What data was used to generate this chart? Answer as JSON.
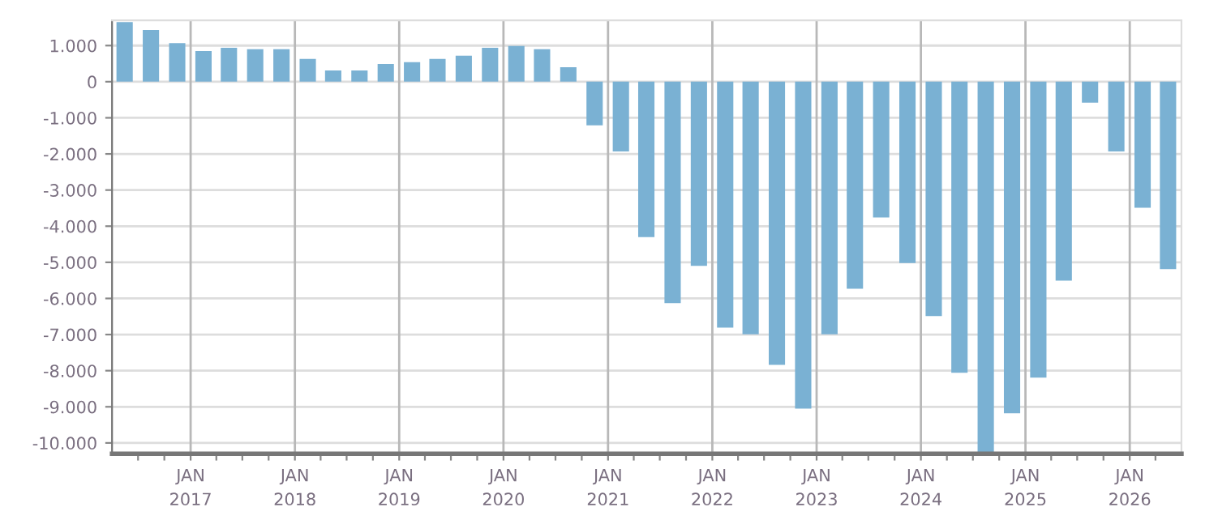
{
  "chart_data": {
    "type": "bar",
    "color": "#7ab1d3",
    "x": [
      "2016-05-15",
      "2016-08-15",
      "2016-11-15",
      "2017-02-15",
      "2017-05-15",
      "2017-08-15",
      "2017-11-15",
      "2018-02-15",
      "2018-05-15",
      "2018-08-15",
      "2018-11-15",
      "2019-02-15",
      "2019-05-15",
      "2019-08-15",
      "2019-11-15",
      "2020-02-15",
      "2020-05-15",
      "2020-08-15",
      "2020-11-15",
      "2021-02-15",
      "2021-05-15",
      "2021-08-15",
      "2021-11-15",
      "2022-02-15",
      "2022-05-15",
      "2022-08-15",
      "2022-11-15",
      "2023-02-15",
      "2023-05-15",
      "2023-08-15",
      "2023-11-15",
      "2024-02-15",
      "2024-05-15",
      "2024-08-15",
      "2024-11-15",
      "2025-02-15",
      "2025-05-15",
      "2025-08-15",
      "2025-11-15",
      "2026-02-15",
      "2026-05-15"
    ],
    "values": [
      1650,
      1430,
      1070,
      850,
      940,
      900,
      900,
      630,
      310,
      310,
      490,
      540,
      630,
      720,
      940,
      990,
      900,
      400,
      -1210,
      -1930,
      -4300,
      -6130,
      -5100,
      -6810,
      -6990,
      -7840,
      -9050,
      -6990,
      -5730,
      -3760,
      -5020,
      -6490,
      -8060,
      -10260,
      -9180,
      -8190,
      -5510,
      -580,
      -1930,
      -3490,
      -5190
    ],
    "xlim": [
      "2016-04-01",
      "2026-07-01"
    ],
    "xticks": [
      {
        "value": "2016-07-01",
        "label": null
      },
      {
        "value": "2016-10-01",
        "label": null
      },
      {
        "value": "2017-01-01",
        "label": "JAN\n2017"
      },
      {
        "value": "2017-04-01",
        "label": null
      },
      {
        "value": "2017-07-01",
        "label": null
      },
      {
        "value": "2017-10-01",
        "label": null
      },
      {
        "value": "2018-01-01",
        "label": "JAN\n2018"
      },
      {
        "value": "2018-04-01",
        "label": null
      },
      {
        "value": "2018-07-01",
        "label": null
      },
      {
        "value": "2018-10-01",
        "label": null
      },
      {
        "value": "2019-01-01",
        "label": "JAN\n2019"
      },
      {
        "value": "2019-04-01",
        "label": null
      },
      {
        "value": "2019-07-01",
        "label": null
      },
      {
        "value": "2019-10-01",
        "label": null
      },
      {
        "value": "2020-01-01",
        "label": "JAN\n2020"
      },
      {
        "value": "2020-04-01",
        "label": null
      },
      {
        "value": "2020-07-01",
        "label": null
      },
      {
        "value": "2020-10-01",
        "label": null
      },
      {
        "value": "2021-01-01",
        "label": "JAN\n2021"
      },
      {
        "value": "2021-04-01",
        "label": null
      },
      {
        "value": "2021-07-01",
        "label": null
      },
      {
        "value": "2021-10-01",
        "label": null
      },
      {
        "value": "2022-01-01",
        "label": "JAN\n2022"
      },
      {
        "value": "2022-04-01",
        "label": null
      },
      {
        "value": "2022-07-01",
        "label": null
      },
      {
        "value": "2022-10-01",
        "label": null
      },
      {
        "value": "2023-01-01",
        "label": "JAN\n2023"
      },
      {
        "value": "2023-04-01",
        "label": null
      },
      {
        "value": "2023-07-01",
        "label": null
      },
      {
        "value": "2023-10-01",
        "label": null
      },
      {
        "value": "2024-01-01",
        "label": "JAN\n2024"
      },
      {
        "value": "2024-04-01",
        "label": null
      },
      {
        "value": "2024-07-01",
        "label": null
      },
      {
        "value": "2024-10-01",
        "label": null
      },
      {
        "value": "2025-01-01",
        "label": "JAN\n2025"
      },
      {
        "value": "2025-04-01",
        "label": null
      },
      {
        "value": "2025-07-01",
        "label": null
      },
      {
        "value": "2025-10-01",
        "label": null
      },
      {
        "value": "2026-01-01",
        "label": "JAN\n2026"
      },
      {
        "value": "2026-04-01",
        "label": null
      }
    ],
    "ylim": [
      -10300,
      1700
    ],
    "yticks": [
      {
        "value": 1000,
        "label": "1.000"
      },
      0,
      {
        "value": -1000,
        "label": "-1.000"
      },
      {
        "value": -2000,
        "label": "-2.000"
      },
      {
        "value": -3000,
        "label": "-3.000"
      },
      {
        "value": -4000,
        "label": "-4.000"
      },
      {
        "value": -5000,
        "label": "-5.000"
      },
      {
        "value": -6000,
        "label": "-6.000"
      },
      {
        "value": -7000,
        "label": "-7.000"
      },
      {
        "value": -8000,
        "label": "-8.000"
      },
      {
        "value": -9000,
        "label": "-9.000"
      },
      {
        "value": -10000,
        "label": "-10.000"
      }
    ],
    "grid": true
  }
}
